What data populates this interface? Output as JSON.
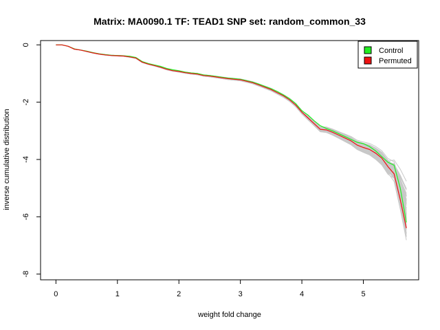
{
  "chart_data": {
    "type": "line",
    "title": "Matrix: MA0090.1 TF: TEAD1 SNP set: random_common_33",
    "xlabel": "weight fold change",
    "ylabel": "inverse cumulative distribution",
    "xlim": [
      -0.25,
      5.9
    ],
    "ylim": [
      -8.2,
      0.15
    ],
    "x_ticks": [
      0,
      1,
      2,
      3,
      4,
      5
    ],
    "x_tick_labels": [
      "0",
      "1",
      "2",
      "3",
      "4",
      "5"
    ],
    "y_ticks": [
      0,
      -2,
      -4,
      -6,
      -8
    ],
    "y_tick_labels": [
      "0",
      "-2",
      "-4",
      "-6",
      "-8"
    ],
    "grid": false,
    "legend": {
      "position": "top-right",
      "entries": [
        {
          "name": "Control",
          "color": "#22ee22"
        },
        {
          "name": "Permuted",
          "color": "#ee1111"
        }
      ]
    },
    "background_color": "#c8c8c8",
    "background_series_count": 60,
    "series": [
      {
        "name": "Control",
        "color": "#22ee22",
        "x": [
          0,
          0.1,
          0.2,
          0.3,
          0.4,
          0.5,
          0.6,
          0.7,
          0.8,
          0.9,
          1.0,
          1.1,
          1.2,
          1.3,
          1.4,
          1.5,
          1.6,
          1.7,
          1.8,
          1.9,
          2.0,
          2.1,
          2.2,
          2.3,
          2.4,
          2.5,
          2.6,
          2.7,
          2.8,
          2.9,
          3.0,
          3.1,
          3.2,
          3.3,
          3.4,
          3.5,
          3.6,
          3.7,
          3.8,
          3.9,
          4.0,
          4.1,
          4.2,
          4.3,
          4.4,
          4.5,
          4.6,
          4.7,
          4.8,
          4.9,
          5.0,
          5.1,
          5.2,
          5.3,
          5.4,
          5.5,
          5.6,
          5.7
        ],
        "y": [
          0,
          0,
          -0.05,
          -0.14,
          -0.18,
          -0.22,
          -0.27,
          -0.31,
          -0.34,
          -0.36,
          -0.37,
          -0.38,
          -0.4,
          -0.44,
          -0.58,
          -0.65,
          -0.7,
          -0.75,
          -0.82,
          -0.87,
          -0.9,
          -0.95,
          -0.98,
          -1.0,
          -1.05,
          -1.07,
          -1.1,
          -1.13,
          -1.16,
          -1.18,
          -1.2,
          -1.25,
          -1.3,
          -1.37,
          -1.45,
          -1.53,
          -1.63,
          -1.75,
          -1.88,
          -2.05,
          -2.3,
          -2.45,
          -2.65,
          -2.82,
          -2.92,
          -3.0,
          -3.1,
          -3.2,
          -3.3,
          -3.4,
          -3.45,
          -3.55,
          -3.7,
          -3.9,
          -4.1,
          -4.2,
          -5.0,
          -6.2
        ]
      },
      {
        "name": "Permuted",
        "color": "#ee1111",
        "x": [
          0,
          0.1,
          0.2,
          0.3,
          0.4,
          0.5,
          0.6,
          0.7,
          0.8,
          0.9,
          1.0,
          1.1,
          1.2,
          1.3,
          1.4,
          1.5,
          1.6,
          1.7,
          1.8,
          1.9,
          2.0,
          2.1,
          2.2,
          2.3,
          2.4,
          2.5,
          2.6,
          2.7,
          2.8,
          2.9,
          3.0,
          3.1,
          3.2,
          3.3,
          3.4,
          3.5,
          3.6,
          3.7,
          3.8,
          3.9,
          4.0,
          4.1,
          4.2,
          4.3,
          4.4,
          4.5,
          4.6,
          4.7,
          4.8,
          4.9,
          5.0,
          5.1,
          5.2,
          5.3,
          5.4,
          5.5,
          5.6,
          5.7
        ],
        "y": [
          0,
          0,
          -0.05,
          -0.15,
          -0.18,
          -0.23,
          -0.28,
          -0.32,
          -0.35,
          -0.37,
          -0.38,
          -0.39,
          -0.42,
          -0.46,
          -0.6,
          -0.67,
          -0.72,
          -0.78,
          -0.85,
          -0.9,
          -0.93,
          -0.97,
          -1.0,
          -1.02,
          -1.07,
          -1.09,
          -1.12,
          -1.15,
          -1.18,
          -1.2,
          -1.22,
          -1.27,
          -1.32,
          -1.4,
          -1.48,
          -1.56,
          -1.67,
          -1.78,
          -1.92,
          -2.1,
          -2.35,
          -2.55,
          -2.75,
          -2.95,
          -2.97,
          -3.05,
          -3.15,
          -3.25,
          -3.35,
          -3.5,
          -3.58,
          -3.65,
          -3.78,
          -3.95,
          -4.25,
          -4.5,
          -5.4,
          -6.4
        ]
      }
    ]
  }
}
